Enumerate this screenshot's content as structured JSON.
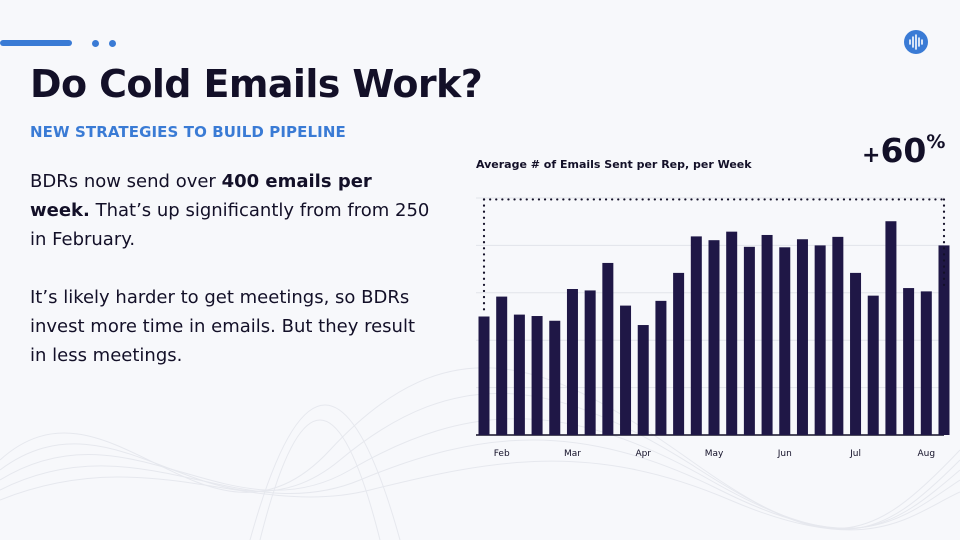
{
  "slide": {
    "title": "Do Cold Emails Work?",
    "subtitle": "NEW STRATEGIES TO BUILD PIPELINE",
    "para1": {
      "a": "BDRs now send over ",
      "bold": "400 emails per week.",
      "b": " That’s up significantly from from 250 in February."
    },
    "para2": "It’s likely harder to get meetings, so BDRs invest more time in emails. But they result in less meetings.",
    "logo_icon": "soundwave-icon"
  },
  "colors": {
    "accent": "#3a7bd5",
    "bar": "#1f1746",
    "text": "#131028"
  },
  "chart_data": {
    "type": "bar",
    "title": "Average # of Emails Sent per Rep, per Week",
    "annotation": {
      "prefix": "+",
      "value": "60",
      "suffix": "%"
    },
    "ylim": [
      0,
      500
    ],
    "grid": true,
    "x_tick_labels": [
      {
        "label": "Feb",
        "index": 1
      },
      {
        "label": "Mar",
        "index": 5
      },
      {
        "label": "Apr",
        "index": 9
      },
      {
        "label": "May",
        "index": 13
      },
      {
        "label": "Jun",
        "index": 17
      },
      {
        "label": "Jul",
        "index": 21
      },
      {
        "label": "Aug",
        "index": 25
      }
    ],
    "values": [
      250,
      292,
      254,
      251,
      241,
      308,
      305,
      363,
      273,
      232,
      283,
      342,
      419,
      411,
      429,
      397,
      422,
      396,
      413,
      400,
      418,
      342,
      294,
      451,
      310,
      303,
      400
    ]
  }
}
